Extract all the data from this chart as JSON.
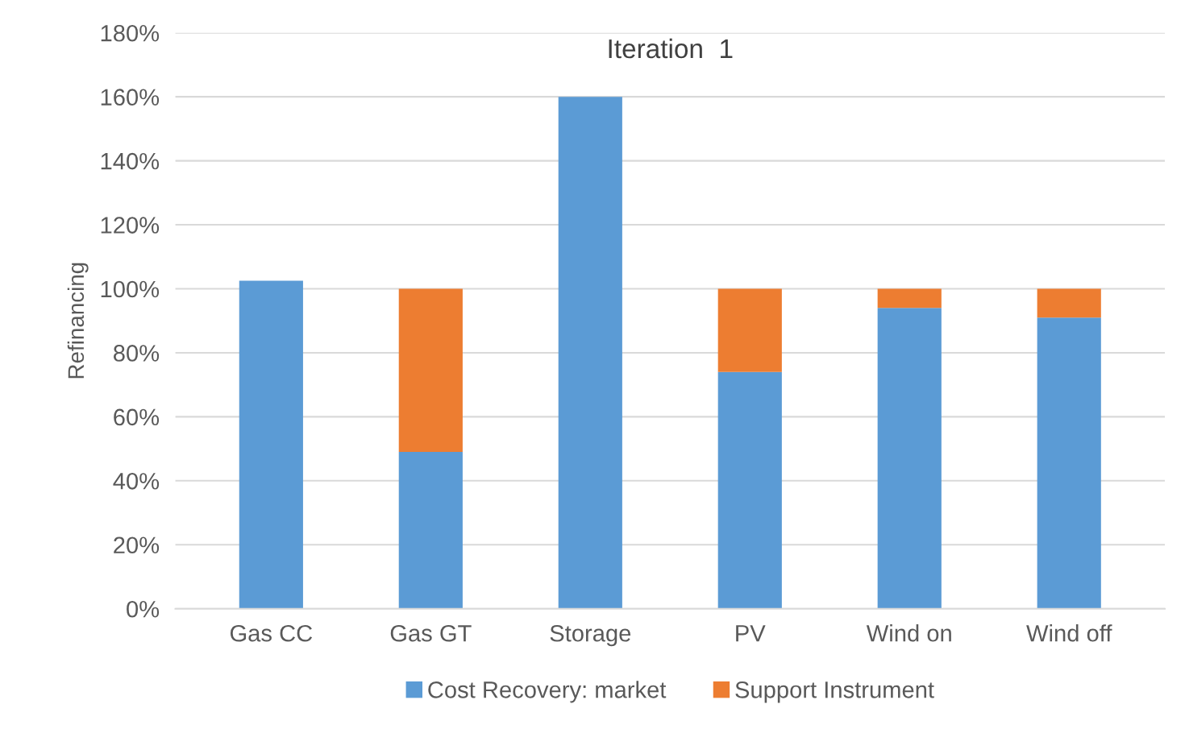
{
  "chart_data": {
    "type": "bar",
    "title": "Iteration  1",
    "ylabel": "Refinancing",
    "categories": [
      "Gas CC",
      "Gas GT",
      "Storage",
      "PV",
      "Wind on",
      "Wind off"
    ],
    "stacked": true,
    "series": [
      {
        "name": "Cost Recovery: market",
        "color": "#5b9bd5",
        "values": [
          102.5,
          49,
          160,
          74,
          94,
          91
        ]
      },
      {
        "name": "Support Instrument",
        "color": "#ed7d31",
        "values": [
          null,
          51,
          null,
          26,
          6,
          9
        ]
      }
    ],
    "ylim": [
      0,
      180
    ],
    "yticks": [
      {
        "value": 0,
        "label": "0%"
      },
      {
        "value": 20,
        "label": "20%"
      },
      {
        "value": 40,
        "label": "40%"
      },
      {
        "value": 60,
        "label": "60%"
      },
      {
        "value": 80,
        "label": "80%"
      },
      {
        "value": 100,
        "label": "100%"
      },
      {
        "value": 120,
        "label": "120%"
      },
      {
        "value": 140,
        "label": "140%"
      },
      {
        "value": 160,
        "label": "160%"
      },
      {
        "value": 180,
        "label": "180%"
      }
    ],
    "grid": "y",
    "legend": "bottom"
  }
}
